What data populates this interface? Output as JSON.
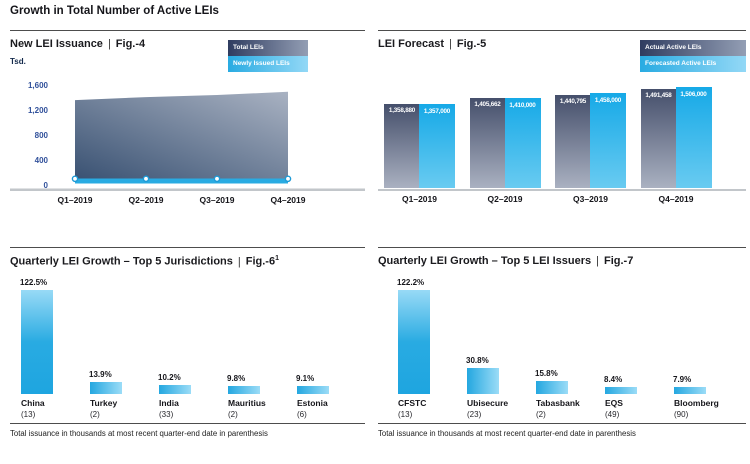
{
  "page_title": "Growth in Total Number of Active LEIs",
  "footnote": "Total issuance in thousands at most recent quarter-end date in parenthesis",
  "ui": {
    "title_separator": "|"
  },
  "colors": {
    "accent_blue": "#29abe2",
    "light_blue": "#93d8f6",
    "slate_dark": "#454f6b",
    "slate_light": "#aab1c1",
    "axis_text_blue": "#31519b",
    "baseline_grey": "#c2c6ca"
  },
  "chart_data": [
    {
      "id": "fig4",
      "type": "area",
      "title": "New LEI Issuance",
      "figure_label": "Fig.-4",
      "ylabel": "Tsd.",
      "ylim": [
        0,
        1600
      ],
      "yticks": [
        0,
        400,
        800,
        1200,
        1600
      ],
      "categories": [
        "Q1–2019",
        "Q2–2019",
        "Q3–2019",
        "Q4–2019"
      ],
      "series": [
        {
          "name": "Total LEIs",
          "values": [
            1358.88,
            1405.662,
            1440.795,
            1491.458
          ]
        },
        {
          "name": "Newly Issued LEIs",
          "values": [
            57,
            54,
            51,
            57
          ]
        }
      ],
      "legend_position": "top-right",
      "grid": false
    },
    {
      "id": "fig5",
      "type": "bar",
      "title": "LEI Forecast",
      "figure_label": "Fig.-5",
      "categories": [
        "Q1–2019",
        "Q2–2019",
        "Q3–2019",
        "Q4–2019"
      ],
      "series": [
        {
          "name": "Actual Active LEIs",
          "values": [
            1358880,
            1405662,
            1440795,
            1491458
          ]
        },
        {
          "name": "Forecasted Active LEIs",
          "values": [
            1357000,
            1410000,
            1458000,
            1506000
          ]
        }
      ],
      "data_labels": true,
      "legend_position": "top-right",
      "grid": false
    },
    {
      "id": "fig6",
      "type": "bar",
      "title": "Quarterly LEI Growth – Top 5 Jurisdictions",
      "figure_label": "Fig.-6",
      "figure_superscript": "1",
      "value_suffix": "%",
      "categories": [
        "China",
        "Turkey",
        "India",
        "Mauritius",
        "Estonia"
      ],
      "values": [
        122.5,
        13.9,
        10.2,
        9.8,
        9.1
      ],
      "issuance_counts": [
        13,
        2,
        33,
        2,
        6
      ],
      "grid": false
    },
    {
      "id": "fig7",
      "type": "bar",
      "title": "Quarterly LEI Growth – Top 5 LEI Issuers",
      "figure_label": "Fig.-7",
      "value_suffix": "%",
      "categories": [
        "CFSTC",
        "Ubisecure",
        "Tabasbank",
        "EQS",
        "Bloomberg"
      ],
      "values": [
        122.2,
        30.8,
        15.8,
        8.4,
        7.9
      ],
      "issuance_counts": [
        13,
        23,
        2,
        49,
        90
      ],
      "grid": false
    }
  ]
}
